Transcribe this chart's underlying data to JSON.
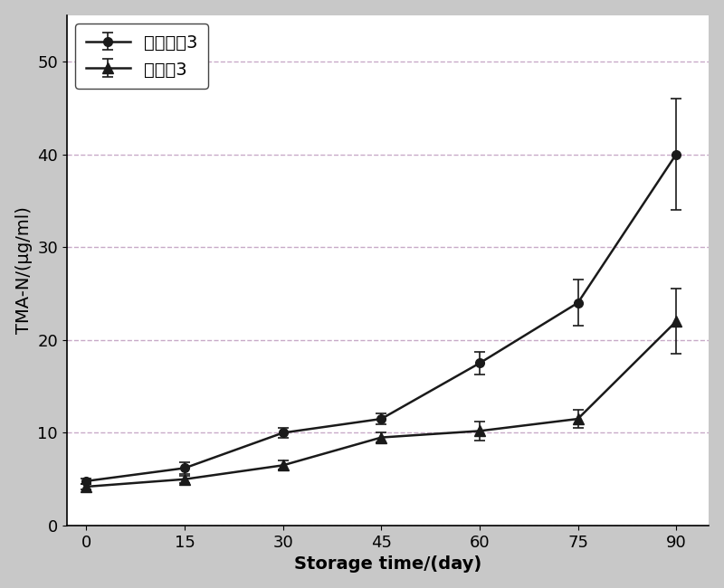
{
  "x": [
    0,
    15,
    30,
    45,
    60,
    75,
    90
  ],
  "series1_y": [
    4.8,
    6.2,
    10.0,
    11.5,
    17.5,
    24.0,
    40.0
  ],
  "series1_yerr": [
    0.3,
    0.6,
    0.5,
    0.6,
    1.2,
    2.5,
    6.0
  ],
  "series1_label": "空白对照3",
  "series2_y": [
    4.2,
    5.0,
    6.5,
    9.5,
    10.2,
    11.5,
    22.0
  ],
  "series2_yerr": [
    0.3,
    0.4,
    0.5,
    0.5,
    1.0,
    1.0,
    3.5
  ],
  "series2_label": "实施例3",
  "xlabel": "Storage time/(day)",
  "ylabel": "TMA-N/(μg/ml)",
  "xlim": [
    -3,
    95
  ],
  "ylim": [
    0,
    55
  ],
  "yticks": [
    0,
    10,
    20,
    30,
    40,
    50
  ],
  "xticks": [
    0,
    15,
    30,
    45,
    60,
    75,
    90
  ],
  "line_color": "#1a1a1a",
  "grid_color": "#c8aac8",
  "background_color": "#ffffff",
  "figure_background": "#c8c8c8",
  "axis_fontsize": 14,
  "tick_fontsize": 13,
  "legend_fontsize": 14
}
